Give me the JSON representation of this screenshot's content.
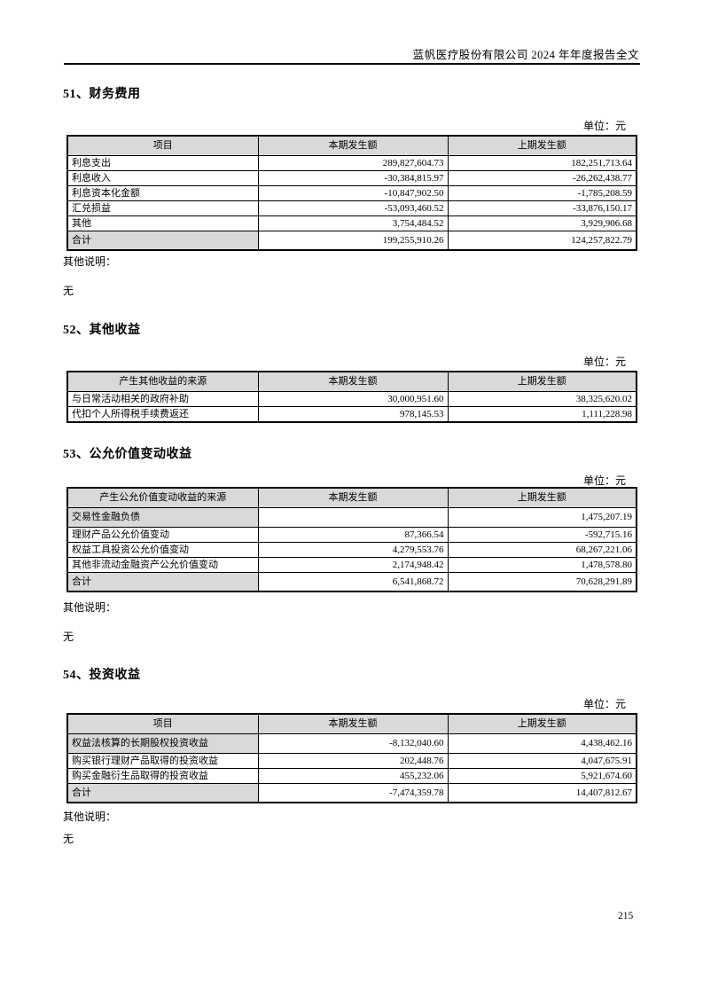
{
  "header": {
    "title": "蓝帆医疗股份有限公司 2024 年年度报告全文"
  },
  "footer": {
    "page_number": "215"
  },
  "colors": {
    "table_header_fill": "#d9d9d9",
    "border": "#000000",
    "page_bg": "#ffffff"
  },
  "sections": [
    {
      "title": "51、财务费用",
      "unit": "单位：元",
      "table": {
        "headers": [
          "项目",
          "本期发生额",
          "上期发生额"
        ],
        "rows": [
          {
            "label": "利息支出",
            "current": "289,827,604.73",
            "prior": "182,251,713.64"
          },
          {
            "label": "利息收入",
            "current": "-30,384,815.97",
            "prior": "-26,262,438.77"
          },
          {
            "label": "利息资本化金额",
            "current": "-10,847,902.50",
            "prior": "-1,785,208.59"
          },
          {
            "label": "汇兑损益",
            "current": "-53,093,460.52",
            "prior": "-33,876,150.17"
          },
          {
            "label": "其他",
            "current": "3,754,484.52",
            "prior": "3,929,906.68"
          },
          {
            "label": "合计",
            "current": "199,255,910.26",
            "prior": "124,257,822.79",
            "shaded": true,
            "tall": true,
            "total": true
          }
        ]
      },
      "notes_label": "其他说明：",
      "notes_value": "无"
    },
    {
      "title": "52、其他收益",
      "unit": "单位：元",
      "table": {
        "headers": [
          "产生其他收益的来源",
          "本期发生额",
          "上期发生额"
        ],
        "rows": [
          {
            "label": "与日常活动相关的政府补助",
            "current": "30,000,951.60",
            "prior": "38,325,620.02"
          },
          {
            "label": "代扣个人所得税手续费返还",
            "current": "978,145.53",
            "prior": "1,111,228.98"
          }
        ]
      }
    },
    {
      "title": "53、公允价值变动收益",
      "unit": "单位：元",
      "table": {
        "headers": [
          "产生公允价值变动收益的来源",
          "本期发生额",
          "上期发生额"
        ],
        "rows": [
          {
            "label": "交易性金融负债",
            "current": "",
            "prior": "1,475,207.19",
            "shaded": true,
            "tall": true
          },
          {
            "label": "理财产品公允价值变动",
            "current": "87,366.54",
            "prior": "-592,715.16"
          },
          {
            "label": "权益工具投资公允价值变动",
            "current": "4,279,553.76",
            "prior": "68,267,221.06"
          },
          {
            "label": "其他非流动金融资产公允价值变动",
            "current": "2,174,948.42",
            "prior": "1,478,578.80"
          },
          {
            "label": "合计",
            "current": "6,541,868.72",
            "prior": "70,628,291.89",
            "shaded": true,
            "tall": true,
            "total": true
          }
        ]
      },
      "notes_label": "其他说明：",
      "notes_value": "无"
    },
    {
      "title": "54、投资收益",
      "unit": "单位：元",
      "table": {
        "headers": [
          "项目",
          "本期发生额",
          "上期发生额"
        ],
        "rows": [
          {
            "label": "权益法核算的长期股权投资收益",
            "current": "-8,132,040.60",
            "prior": "4,438,462.16",
            "shaded": true,
            "tall": true
          },
          {
            "label": "购买银行理财产品取得的投资收益",
            "current": "202,448.76",
            "prior": "4,047,675.91"
          },
          {
            "label": "购买金融衍生品取得的投资收益",
            "current": "455,232.06",
            "prior": "5,921,674.60"
          },
          {
            "label": "合计",
            "current": "-7,474,359.78",
            "prior": "14,407,812.67",
            "shaded": true,
            "tall": true,
            "total": true
          }
        ]
      },
      "notes_label": "其他说明：",
      "notes_value": "无"
    }
  ]
}
